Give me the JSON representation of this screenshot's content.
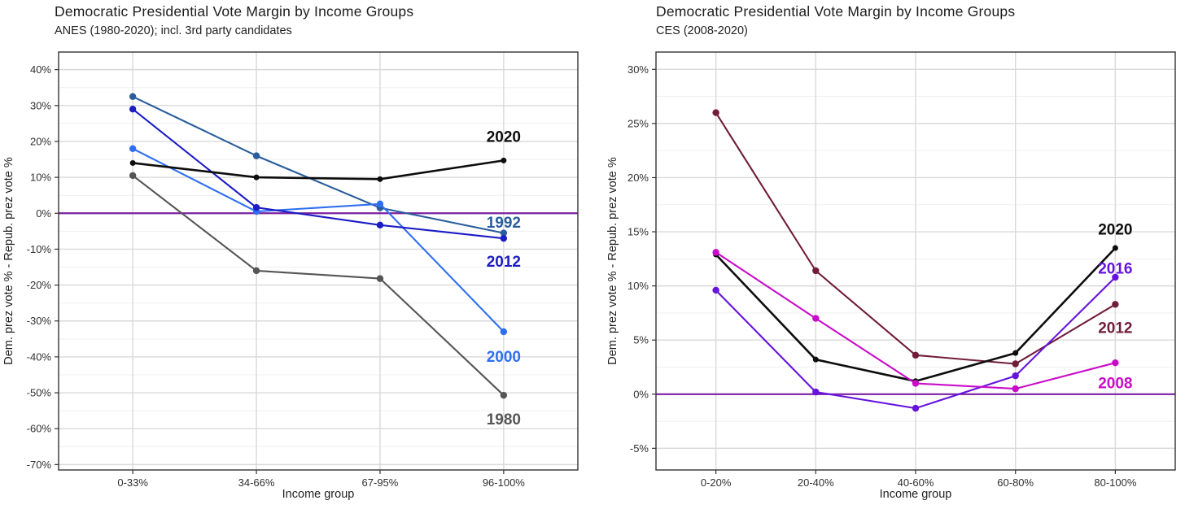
{
  "chart_data": [
    {
      "type": "line",
      "title": "Democratic Presidential Vote Margin by Income Groups",
      "subtitle": "ANES (1980-2020); incl. 3rd party candidates",
      "xlabel": "Income group",
      "ylabel": "Dem. prez vote % - Repub. prez vote %",
      "categories": [
        "0-33%",
        "34-66%",
        "67-95%",
        "96-100%"
      ],
      "y_ticks": [
        40,
        30,
        20,
        10,
        0,
        -10,
        -20,
        -30,
        -40,
        -50,
        -60,
        -70
      ],
      "ylim": [
        -71.5,
        44.9
      ],
      "grid": true,
      "legend": "direct-labels-right",
      "zero_line": {
        "value": 0,
        "color": "#7b1fa2"
      },
      "series": [
        {
          "name": "1980",
          "color": "#555555",
          "values": [
            10.5,
            -16,
            -18.2,
            -50.7
          ],
          "label_value": -57.5
        },
        {
          "name": "1992",
          "color": "#2a5d9c",
          "values": [
            32.5,
            16,
            1.5,
            -5.5
          ],
          "label_value": -2.7
        },
        {
          "name": "2000",
          "color": "#2e6ff2",
          "values": [
            18,
            0.5,
            2.6,
            -33
          ],
          "label_value": -40
        },
        {
          "name": "2012",
          "color": "#1c1cc4",
          "values": [
            29,
            1.6,
            -3.3,
            -7
          ],
          "label_value": -13.5
        },
        {
          "name": "2020",
          "color": "#0d0d0d",
          "values": [
            14,
            10,
            9.5,
            14.7
          ],
          "label_value": 21.2
        }
      ]
    },
    {
      "type": "line",
      "title": "Democratic Presidential Vote Margin by Income Groups",
      "subtitle": "CES (2008-2020)",
      "xlabel": "Income group",
      "ylabel": "Dem. prez vote % - Repub. prez vote %",
      "categories": [
        "0-20%",
        "20-40%",
        "40-60%",
        "60-80%",
        "80-100%"
      ],
      "y_ticks": [
        30,
        25,
        20,
        15,
        10,
        5,
        0,
        -5
      ],
      "ylim": [
        -7.0,
        31.6
      ],
      "grid": true,
      "legend": "direct-labels-right",
      "zero_line": {
        "value": 0,
        "color": "#7b1fa2"
      },
      "series": [
        {
          "name": "2012",
          "color": "#701d3a",
          "values": [
            26,
            11.4,
            3.6,
            2.8,
            8.3
          ],
          "label_value": 6.1
        },
        {
          "name": "2020",
          "color": "#0d0d0d",
          "values": [
            12.9,
            3.2,
            1.2,
            3.8,
            13.5
          ],
          "label_value": 15.2
        },
        {
          "name": "2016",
          "color": "#6613dd",
          "values": [
            9.6,
            0.2,
            -1.3,
            1.7,
            10.8
          ],
          "label_value": 11.6
        },
        {
          "name": "2008",
          "color": "#c90cc9",
          "values": [
            13.1,
            7,
            1,
            0.5,
            2.9
          ],
          "label_value": 1.0
        }
      ]
    }
  ],
  "style": {
    "grid_major_color": "#d9d9d9",
    "grid_minor_color": "#efefef",
    "panel_border_color": "#333333",
    "tick_color": "#333333"
  }
}
